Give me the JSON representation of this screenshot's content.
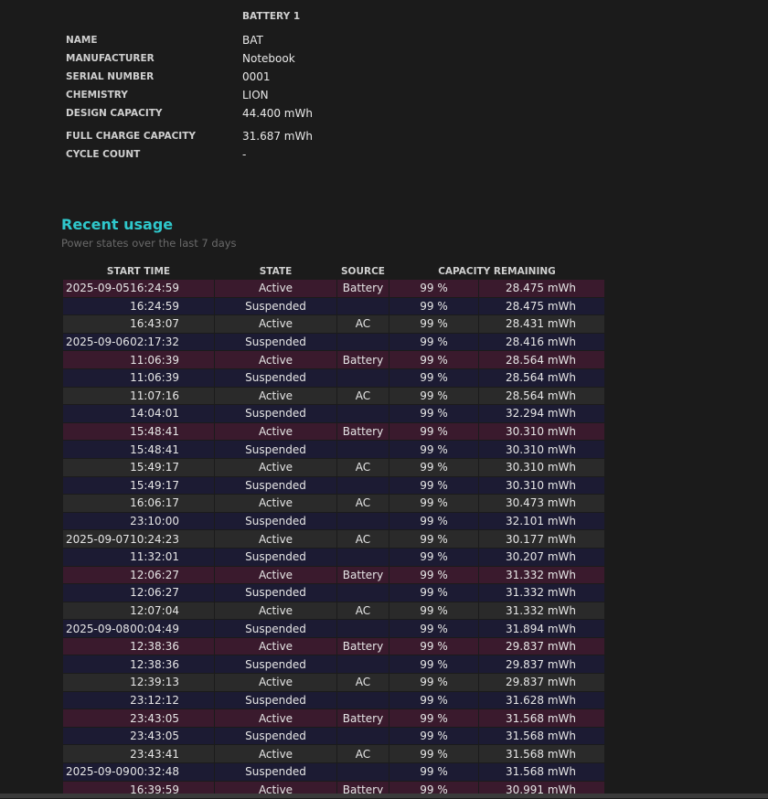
{
  "battery": {
    "header": "BATTERY 1",
    "fields": [
      {
        "label": "NAME",
        "value": "BAT"
      },
      {
        "label": "MANUFACTURER",
        "value": "Notebook"
      },
      {
        "label": "SERIAL NUMBER",
        "value": "0001"
      },
      {
        "label": "CHEMISTRY",
        "value": "LION"
      },
      {
        "label": "DESIGN CAPACITY",
        "value": "44.400 mWh"
      },
      {
        "label": "FULL CHARGE CAPACITY",
        "value": "31.687 mWh"
      },
      {
        "label": "CYCLE COUNT",
        "value": "-"
      }
    ]
  },
  "usage": {
    "title": "Recent usage",
    "subtitle": "Power states over the last 7 days",
    "columns": [
      "START TIME",
      "STATE",
      "SOURCE",
      "CAPACITY REMAINING"
    ],
    "colors": {
      "battery": "#3a1a2d",
      "suspended": "#1c1b33",
      "ac": "#2a2a2a",
      "title": "#2fc8cc"
    },
    "rows": [
      [
        "2025-09-05",
        "16:24:59",
        "Active",
        "Battery",
        "99 %",
        "28.475 mWh"
      ],
      [
        "",
        "16:24:59",
        "Suspended",
        "",
        "99 %",
        "28.475 mWh"
      ],
      [
        "",
        "16:43:07",
        "Active",
        "AC",
        "99 %",
        "28.431 mWh"
      ],
      [
        "2025-09-06",
        "02:17:32",
        "Suspended",
        "",
        "99 %",
        "28.416 mWh"
      ],
      [
        "",
        "11:06:39",
        "Active",
        "Battery",
        "99 %",
        "28.564 mWh"
      ],
      [
        "",
        "11:06:39",
        "Suspended",
        "",
        "99 %",
        "28.564 mWh"
      ],
      [
        "",
        "11:07:16",
        "Active",
        "AC",
        "99 %",
        "28.564 mWh"
      ],
      [
        "",
        "14:04:01",
        "Suspended",
        "",
        "99 %",
        "32.294 mWh"
      ],
      [
        "",
        "15:48:41",
        "Active",
        "Battery",
        "99 %",
        "30.310 mWh"
      ],
      [
        "",
        "15:48:41",
        "Suspended",
        "",
        "99 %",
        "30.310 mWh"
      ],
      [
        "",
        "15:49:17",
        "Active",
        "AC",
        "99 %",
        "30.310 mWh"
      ],
      [
        "",
        "15:49:17",
        "Suspended",
        "",
        "99 %",
        "30.310 mWh"
      ],
      [
        "",
        "16:06:17",
        "Active",
        "AC",
        "99 %",
        "30.473 mWh"
      ],
      [
        "",
        "23:10:00",
        "Suspended",
        "",
        "99 %",
        "32.101 mWh"
      ],
      [
        "2025-09-07",
        "10:24:23",
        "Active",
        "AC",
        "99 %",
        "30.177 mWh"
      ],
      [
        "",
        "11:32:01",
        "Suspended",
        "",
        "99 %",
        "30.207 mWh"
      ],
      [
        "",
        "12:06:27",
        "Active",
        "Battery",
        "99 %",
        "31.332 mWh"
      ],
      [
        "",
        "12:06:27",
        "Suspended",
        "",
        "99 %",
        "31.332 mWh"
      ],
      [
        "",
        "12:07:04",
        "Active",
        "AC",
        "99 %",
        "31.332 mWh"
      ],
      [
        "2025-09-08",
        "00:04:49",
        "Suspended",
        "",
        "99 %",
        "31.894 mWh"
      ],
      [
        "",
        "12:38:36",
        "Active",
        "Battery",
        "99 %",
        "29.837 mWh"
      ],
      [
        "",
        "12:38:36",
        "Suspended",
        "",
        "99 %",
        "29.837 mWh"
      ],
      [
        "",
        "12:39:13",
        "Active",
        "AC",
        "99 %",
        "29.837 mWh"
      ],
      [
        "",
        "23:12:12",
        "Suspended",
        "",
        "99 %",
        "31.628 mWh"
      ],
      [
        "",
        "23:43:05",
        "Active",
        "Battery",
        "99 %",
        "31.568 mWh"
      ],
      [
        "",
        "23:43:05",
        "Suspended",
        "",
        "99 %",
        "31.568 mWh"
      ],
      [
        "",
        "23:43:41",
        "Active",
        "AC",
        "99 %",
        "31.568 mWh"
      ],
      [
        "2025-09-09",
        "00:32:48",
        "Suspended",
        "",
        "99 %",
        "31.568 mWh"
      ],
      [
        "",
        "16:39:59",
        "Active",
        "Battery",
        "99 %",
        "30.991 mWh"
      ]
    ]
  }
}
